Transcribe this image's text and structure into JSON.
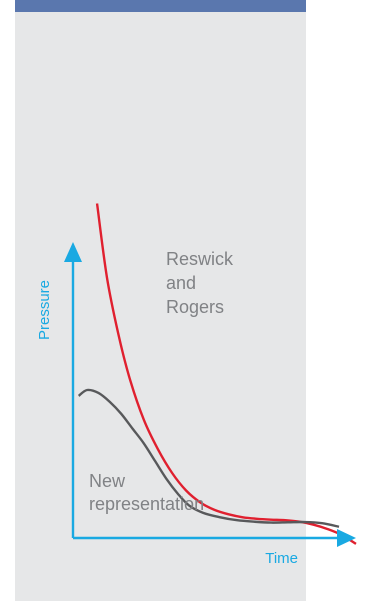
{
  "colors": {
    "background": "#ffffff",
    "panel": "#e6e7e8",
    "top_band": "#5a77ae",
    "axis": "#19a9e2",
    "reswick_curve": "#e0202f",
    "new_curve": "#58595b",
    "label_text": "#808285"
  },
  "chart_data": {
    "type": "line",
    "title": "",
    "xlabel": "Time",
    "ylabel": "Pressure",
    "grid": false,
    "legend": "none",
    "xlim": [
      0,
      100
    ],
    "ylim": [
      0,
      100
    ],
    "series": [
      {
        "name": "Reswick and Rogers",
        "color": "#e0202f",
        "points": [
          [
            8.5,
            113
          ],
          [
            12,
            88
          ],
          [
            16,
            69
          ],
          [
            20,
            54
          ],
          [
            25,
            40
          ],
          [
            30,
            30
          ],
          [
            35,
            22
          ],
          [
            40,
            16
          ],
          [
            45,
            12
          ],
          [
            50,
            9.5
          ],
          [
            55,
            8
          ],
          [
            60,
            7
          ],
          [
            65,
            6.5
          ],
          [
            70,
            6.2
          ],
          [
            75,
            6
          ],
          [
            80,
            5.5
          ],
          [
            85,
            4.5
          ],
          [
            90,
            3
          ],
          [
            95,
            1
          ],
          [
            100,
            -2
          ]
        ]
      },
      {
        "name": "New representation",
        "color": "#58595b",
        "points": [
          [
            2,
            48
          ],
          [
            5,
            50
          ],
          [
            9,
            49
          ],
          [
            13,
            46
          ],
          [
            17,
            42
          ],
          [
            21,
            37
          ],
          [
            25,
            32
          ],
          [
            29,
            26
          ],
          [
            33,
            20
          ],
          [
            37,
            15
          ],
          [
            41,
            11
          ],
          [
            46,
            8.5
          ],
          [
            52,
            7
          ],
          [
            58,
            6
          ],
          [
            64,
            5.5
          ],
          [
            70,
            5.2
          ],
          [
            76,
            5.3
          ],
          [
            82,
            5.4
          ],
          [
            88,
            5
          ],
          [
            94,
            3.8
          ]
        ]
      }
    ],
    "annotations": [
      {
        "series": "Reswick and Rogers",
        "lines": [
          "Reswick",
          "and",
          "Rogers"
        ]
      },
      {
        "series": "New representation",
        "lines": [
          "New",
          "representation"
        ]
      }
    ]
  }
}
